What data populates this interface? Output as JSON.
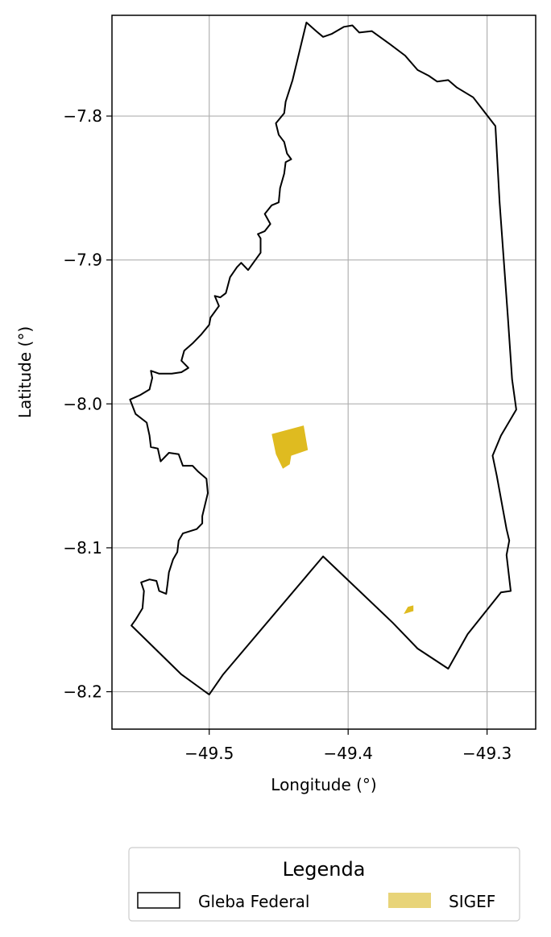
{
  "chart_data": {
    "type": "map",
    "xlabel": "Longitude (°)",
    "ylabel": "Latitude (°)",
    "xlim": [
      -49.57,
      -49.265
    ],
    "ylim": [
      -8.226,
      -7.73
    ],
    "xticks": [
      {
        "value": -49.5,
        "label": "−49.5"
      },
      {
        "value": -49.4,
        "label": "−49.4"
      },
      {
        "value": -49.3,
        "label": "−49.3"
      }
    ],
    "yticks": [
      {
        "value": -7.8,
        "label": "−7.8"
      },
      {
        "value": -7.9,
        "label": "−7.9"
      },
      {
        "value": -8.0,
        "label": "−8.0"
      },
      {
        "value": -8.1,
        "label": "−8.1"
      },
      {
        "value": -8.2,
        "label": "−8.2"
      }
    ],
    "grid": true,
    "legend": {
      "title": "Legenda",
      "position": "bottom-center",
      "entries": [
        {
          "label": "Gleba Federal",
          "style": "outline",
          "color": "#000000"
        },
        {
          "label": "SIGEF",
          "style": "fill",
          "color": "#e8d479"
        }
      ]
    },
    "layers": [
      {
        "name": "Gleba Federal",
        "kind": "outline",
        "stroke": "#000000",
        "coordinates": [
          [
            -49.43,
            -7.735
          ],
          [
            -49.423,
            -7.741
          ],
          [
            -49.418,
            -7.745
          ],
          [
            -49.412,
            -7.743
          ],
          [
            -49.403,
            -7.738
          ],
          [
            -49.397,
            -7.737
          ],
          [
            -49.392,
            -7.742
          ],
          [
            -49.383,
            -7.741
          ],
          [
            -49.37,
            -7.75
          ],
          [
            -49.359,
            -7.758
          ],
          [
            -49.35,
            -7.768
          ],
          [
            -49.342,
            -7.772
          ],
          [
            -49.336,
            -7.776
          ],
          [
            -49.328,
            -7.775
          ],
          [
            -49.322,
            -7.78
          ],
          [
            -49.31,
            -7.787
          ],
          [
            -49.294,
            -7.807
          ],
          [
            -49.291,
            -7.86
          ],
          [
            -49.285,
            -7.94
          ],
          [
            -49.282,
            -7.983
          ],
          [
            -49.279,
            -8.004
          ],
          [
            -49.29,
            -8.022
          ],
          [
            -49.296,
            -8.036
          ],
          [
            -49.293,
            -8.05
          ],
          [
            -49.286,
            -8.087
          ],
          [
            -49.284,
            -8.095
          ],
          [
            -49.286,
            -8.105
          ],
          [
            -49.283,
            -8.13
          ],
          [
            -49.29,
            -8.131
          ],
          [
            -49.314,
            -8.16
          ],
          [
            -49.328,
            -8.184
          ],
          [
            -49.35,
            -8.17
          ],
          [
            -49.368,
            -8.152
          ],
          [
            -49.418,
            -8.106
          ],
          [
            -49.49,
            -8.188
          ],
          [
            -49.5,
            -8.202
          ],
          [
            -49.52,
            -8.188
          ],
          [
            -49.556,
            -8.154
          ],
          [
            -49.553,
            -8.15
          ],
          [
            -49.548,
            -8.142
          ],
          [
            -49.547,
            -8.13
          ],
          [
            -49.549,
            -8.124
          ],
          [
            -49.543,
            -8.122
          ],
          [
            -49.538,
            -8.123
          ],
          [
            -49.536,
            -8.13
          ],
          [
            -49.531,
            -8.132
          ],
          [
            -49.53,
            -8.125
          ],
          [
            -49.529,
            -8.117
          ],
          [
            -49.526,
            -8.108
          ],
          [
            -49.523,
            -8.103
          ],
          [
            -49.522,
            -8.095
          ],
          [
            -49.519,
            -8.09
          ],
          [
            -49.509,
            -8.087
          ],
          [
            -49.505,
            -8.083
          ],
          [
            -49.505,
            -8.078
          ],
          [
            -49.501,
            -8.062
          ],
          [
            -49.502,
            -8.052
          ],
          [
            -49.508,
            -8.047
          ],
          [
            -49.512,
            -8.043
          ],
          [
            -49.519,
            -8.043
          ],
          [
            -49.522,
            -8.035
          ],
          [
            -49.529,
            -8.034
          ],
          [
            -49.535,
            -8.04
          ],
          [
            -49.537,
            -8.031
          ],
          [
            -49.542,
            -8.03
          ],
          [
            -49.543,
            -8.022
          ],
          [
            -49.545,
            -8.013
          ],
          [
            -49.553,
            -8.007
          ],
          [
            -49.557,
            -7.997
          ],
          [
            -49.55,
            -7.994
          ],
          [
            -49.543,
            -7.99
          ],
          [
            -49.541,
            -7.982
          ],
          [
            -49.542,
            -7.977
          ],
          [
            -49.536,
            -7.979
          ],
          [
            -49.527,
            -7.979
          ],
          [
            -49.52,
            -7.978
          ],
          [
            -49.515,
            -7.975
          ],
          [
            -49.52,
            -7.97
          ],
          [
            -49.518,
            -7.963
          ],
          [
            -49.512,
            -7.958
          ],
          [
            -49.506,
            -7.952
          ],
          [
            -49.5,
            -7.945
          ],
          [
            -49.499,
            -7.94
          ],
          [
            -49.493,
            -7.932
          ],
          [
            -49.496,
            -7.925
          ],
          [
            -49.492,
            -7.926
          ],
          [
            -49.488,
            -7.923
          ],
          [
            -49.485,
            -7.912
          ],
          [
            -49.48,
            -7.905
          ],
          [
            -49.477,
            -7.902
          ],
          [
            -49.472,
            -7.907
          ],
          [
            -49.463,
            -7.895
          ],
          [
            -49.463,
            -7.885
          ],
          [
            -49.465,
            -7.882
          ],
          [
            -49.46,
            -7.88
          ],
          [
            -49.456,
            -7.875
          ],
          [
            -49.46,
            -7.868
          ],
          [
            -49.455,
            -7.862
          ],
          [
            -49.45,
            -7.86
          ],
          [
            -49.449,
            -7.85
          ],
          [
            -49.446,
            -7.84
          ],
          [
            -49.445,
            -7.832
          ],
          [
            -49.441,
            -7.83
          ],
          [
            -49.444,
            -7.826
          ],
          [
            -49.446,
            -7.818
          ],
          [
            -49.45,
            -7.813
          ],
          [
            -49.452,
            -7.805
          ],
          [
            -49.446,
            -7.798
          ],
          [
            -49.445,
            -7.79
          ],
          [
            -49.44,
            -7.775
          ],
          [
            -49.43,
            -7.735
          ]
        ]
      },
      {
        "name": "SIGEF",
        "kind": "fill",
        "fill": "#dfbb20",
        "polygons": [
          [
            [
              -49.455,
              -8.021
            ],
            [
              -49.432,
              -8.015
            ],
            [
              -49.429,
              -8.032
            ],
            [
              -49.441,
              -8.036
            ],
            [
              -49.442,
              -8.042
            ],
            [
              -49.447,
              -8.045
            ],
            [
              -49.452,
              -8.035
            ]
          ],
          [
            [
              -49.357,
              -8.141
            ],
            [
              -49.353,
              -8.14
            ],
            [
              -49.353,
              -8.144
            ],
            [
              -49.36,
              -8.146
            ]
          ]
        ]
      }
    ]
  }
}
